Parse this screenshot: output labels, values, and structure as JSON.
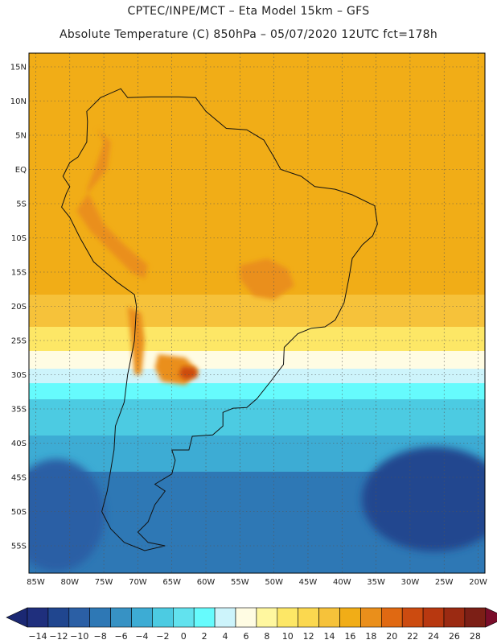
{
  "title_line1": "CPTEC/INPE/MCT –  Eta Model 15km – GFS",
  "title_line2": "Absolute Temperature (C) 850hPa – 05/07/2020 12UTC fct=178h",
  "map": {
    "lon_range": [
      -86,
      -19
    ],
    "lat_range": [
      -59,
      17
    ],
    "lat_ticks": [
      {
        "value": 15,
        "label": "15N"
      },
      {
        "value": 10,
        "label": "10N"
      },
      {
        "value": 5,
        "label": "5N"
      },
      {
        "value": 0,
        "label": "EQ"
      },
      {
        "value": -5,
        "label": "5S"
      },
      {
        "value": -10,
        "label": "10S"
      },
      {
        "value": -15,
        "label": "15S"
      },
      {
        "value": -20,
        "label": "20S"
      },
      {
        "value": -25,
        "label": "25S"
      },
      {
        "value": -30,
        "label": "30S"
      },
      {
        "value": -35,
        "label": "35S"
      },
      {
        "value": -40,
        "label": "40S"
      },
      {
        "value": -45,
        "label": "45S"
      },
      {
        "value": -50,
        "label": "50S"
      },
      {
        "value": -55,
        "label": "55S"
      }
    ],
    "lon_ticks": [
      {
        "value": -85,
        "label": "85W"
      },
      {
        "value": -80,
        "label": "80W"
      },
      {
        "value": -75,
        "label": "75W"
      },
      {
        "value": -70,
        "label": "70W"
      },
      {
        "value": -65,
        "label": "65W"
      },
      {
        "value": -60,
        "label": "60W"
      },
      {
        "value": -55,
        "label": "55W"
      },
      {
        "value": -50,
        "label": "50W"
      },
      {
        "value": -45,
        "label": "45W"
      },
      {
        "value": -40,
        "label": "40W"
      },
      {
        "value": -35,
        "label": "35W"
      },
      {
        "value": -30,
        "label": "30W"
      },
      {
        "value": -25,
        "label": "25W"
      },
      {
        "value": -20,
        "label": "20W"
      }
    ],
    "coastline": [
      [
        -77.5,
        8.5
      ],
      [
        -75.5,
        10.5
      ],
      [
        -72.5,
        11.8
      ],
      [
        -71.5,
        10.5
      ],
      [
        -68,
        10.6
      ],
      [
        -64,
        10.6
      ],
      [
        -61.5,
        10.5
      ],
      [
        -60,
        8.5
      ],
      [
        -57,
        6
      ],
      [
        -54,
        5.8
      ],
      [
        -51.5,
        4.3
      ],
      [
        -50,
        1.8
      ],
      [
        -49,
        0
      ],
      [
        -46,
        -1
      ],
      [
        -44,
        -2.5
      ],
      [
        -41,
        -2.9
      ],
      [
        -38.5,
        -3.7
      ],
      [
        -35.2,
        -5.3
      ],
      [
        -34.8,
        -8
      ],
      [
        -35.5,
        -9.7
      ],
      [
        -37,
        -11
      ],
      [
        -38.5,
        -13
      ],
      [
        -39,
        -16
      ],
      [
        -39.7,
        -19.5
      ],
      [
        -41,
        -22
      ],
      [
        -42.5,
        -23
      ],
      [
        -44.5,
        -23.2
      ],
      [
        -46.5,
        -24
      ],
      [
        -48.5,
        -26
      ],
      [
        -48.6,
        -28.5
      ],
      [
        -50.5,
        -31
      ],
      [
        -52.5,
        -33.5
      ],
      [
        -54,
        -34.8
      ],
      [
        -56,
        -34.9
      ],
      [
        -57.5,
        -35.5
      ],
      [
        -57.5,
        -37.5
      ],
      [
        -59,
        -38.8
      ],
      [
        -62,
        -39
      ],
      [
        -62.5,
        -41
      ],
      [
        -65,
        -41
      ],
      [
        -64.5,
        -42.5
      ],
      [
        -65,
        -44.5
      ],
      [
        -67.5,
        -46
      ],
      [
        -66,
        -47
      ],
      [
        -67.5,
        -49
      ],
      [
        -68.5,
        -51.5
      ],
      [
        -70,
        -53
      ],
      [
        -68.5,
        -54.5
      ],
      [
        -66,
        -55
      ],
      [
        -69,
        -55.7
      ],
      [
        -72,
        -54.5
      ],
      [
        -74,
        -52.5
      ],
      [
        -75.3,
        -50
      ],
      [
        -74.5,
        -47
      ],
      [
        -74,
        -44
      ],
      [
        -73.5,
        -41
      ],
      [
        -73.3,
        -37.5
      ],
      [
        -72,
        -34
      ],
      [
        -71.5,
        -30
      ],
      [
        -70.5,
        -25
      ],
      [
        -70.2,
        -20
      ],
      [
        -70.5,
        -18.3
      ],
      [
        -73,
        -16.5
      ],
      [
        -76.5,
        -13.5
      ],
      [
        -78.5,
        -10
      ],
      [
        -80,
        -7
      ],
      [
        -81.2,
        -5.5
      ],
      [
        -80.5,
        -3.5
      ],
      [
        -80,
        -2.5
      ],
      [
        -81,
        -1
      ],
      [
        -80,
        1
      ],
      [
        -78.8,
        1.8
      ],
      [
        -77.5,
        4
      ],
      [
        -77.4,
        7
      ],
      [
        -77.5,
        8.5
      ]
    ],
    "warm_core_1": [
      [
        -76,
        6
      ],
      [
        -74,
        4
      ],
      [
        -74.5,
        0
      ],
      [
        -77,
        -3
      ],
      [
        -79,
        -6
      ],
      [
        -77,
        -9
      ],
      [
        -73.5,
        -12.5
      ],
      [
        -71,
        -15
      ],
      [
        -69,
        -16
      ],
      [
        -68.5,
        -14
      ],
      [
        -72,
        -11
      ],
      [
        -75,
        -8
      ],
      [
        -77.5,
        -3
      ],
      [
        -76,
        1
      ],
      [
        -75,
        4
      ],
      [
        -76,
        6
      ]
    ],
    "warm_core_2": [
      [
        -55,
        -14
      ],
      [
        -51,
        -13
      ],
      [
        -48,
        -14.5
      ],
      [
        -47,
        -17
      ],
      [
        -50,
        -19
      ],
      [
        -53,
        -18.5
      ],
      [
        -55,
        -16
      ],
      [
        -55,
        -14
      ]
    ],
    "warm_core_3": [
      [
        -67,
        -27
      ],
      [
        -63,
        -27.5
      ],
      [
        -61,
        -29.5
      ],
      [
        -63,
        -31.5
      ],
      [
        -66.5,
        -31
      ],
      [
        -67.5,
        -29
      ],
      [
        -67,
        -27
      ]
    ],
    "warm_core_4": [
      [
        -71.5,
        -20
      ],
      [
        -69.5,
        -21
      ],
      [
        -69,
        -25
      ],
      [
        -69.5,
        -30
      ],
      [
        -70.5,
        -30
      ],
      [
        -71,
        -25
      ],
      [
        -71.5,
        -20
      ]
    ],
    "hot_spot": [
      [
        -63.5,
        -28.8
      ],
      [
        -61.5,
        -29
      ],
      [
        -61.2,
        -30.3
      ],
      [
        -63,
        -30.8
      ],
      [
        -64,
        -30
      ],
      [
        -63.5,
        -28.8
      ]
    ]
  },
  "colorbar": {
    "colors": [
      "#1f2f7d",
      "#20468f",
      "#2b5fa5",
      "#2e78b5",
      "#3792c4",
      "#3dacd4",
      "#4ccbe2",
      "#62e2ee",
      "#66fbfd",
      "#cdf4fb",
      "#fffce3",
      "#fff79f",
      "#fde766",
      "#fbd84f",
      "#f6c23a",
      "#f1ad17",
      "#ea8f1b",
      "#e06912",
      "#cc4b10",
      "#b83810",
      "#9b2a12",
      "#7c1f16"
    ],
    "low_arrow_color": "#1b2873",
    "high_arrow_color": "#7a0d2a",
    "labels": [
      "−14",
      "−12",
      "−10",
      "−8",
      "−6",
      "−4",
      "−2",
      "0",
      "2",
      "4",
      "6",
      "8",
      "10",
      "12",
      "14",
      "16",
      "18",
      "20",
      "22",
      "24",
      "26",
      "28"
    ]
  }
}
